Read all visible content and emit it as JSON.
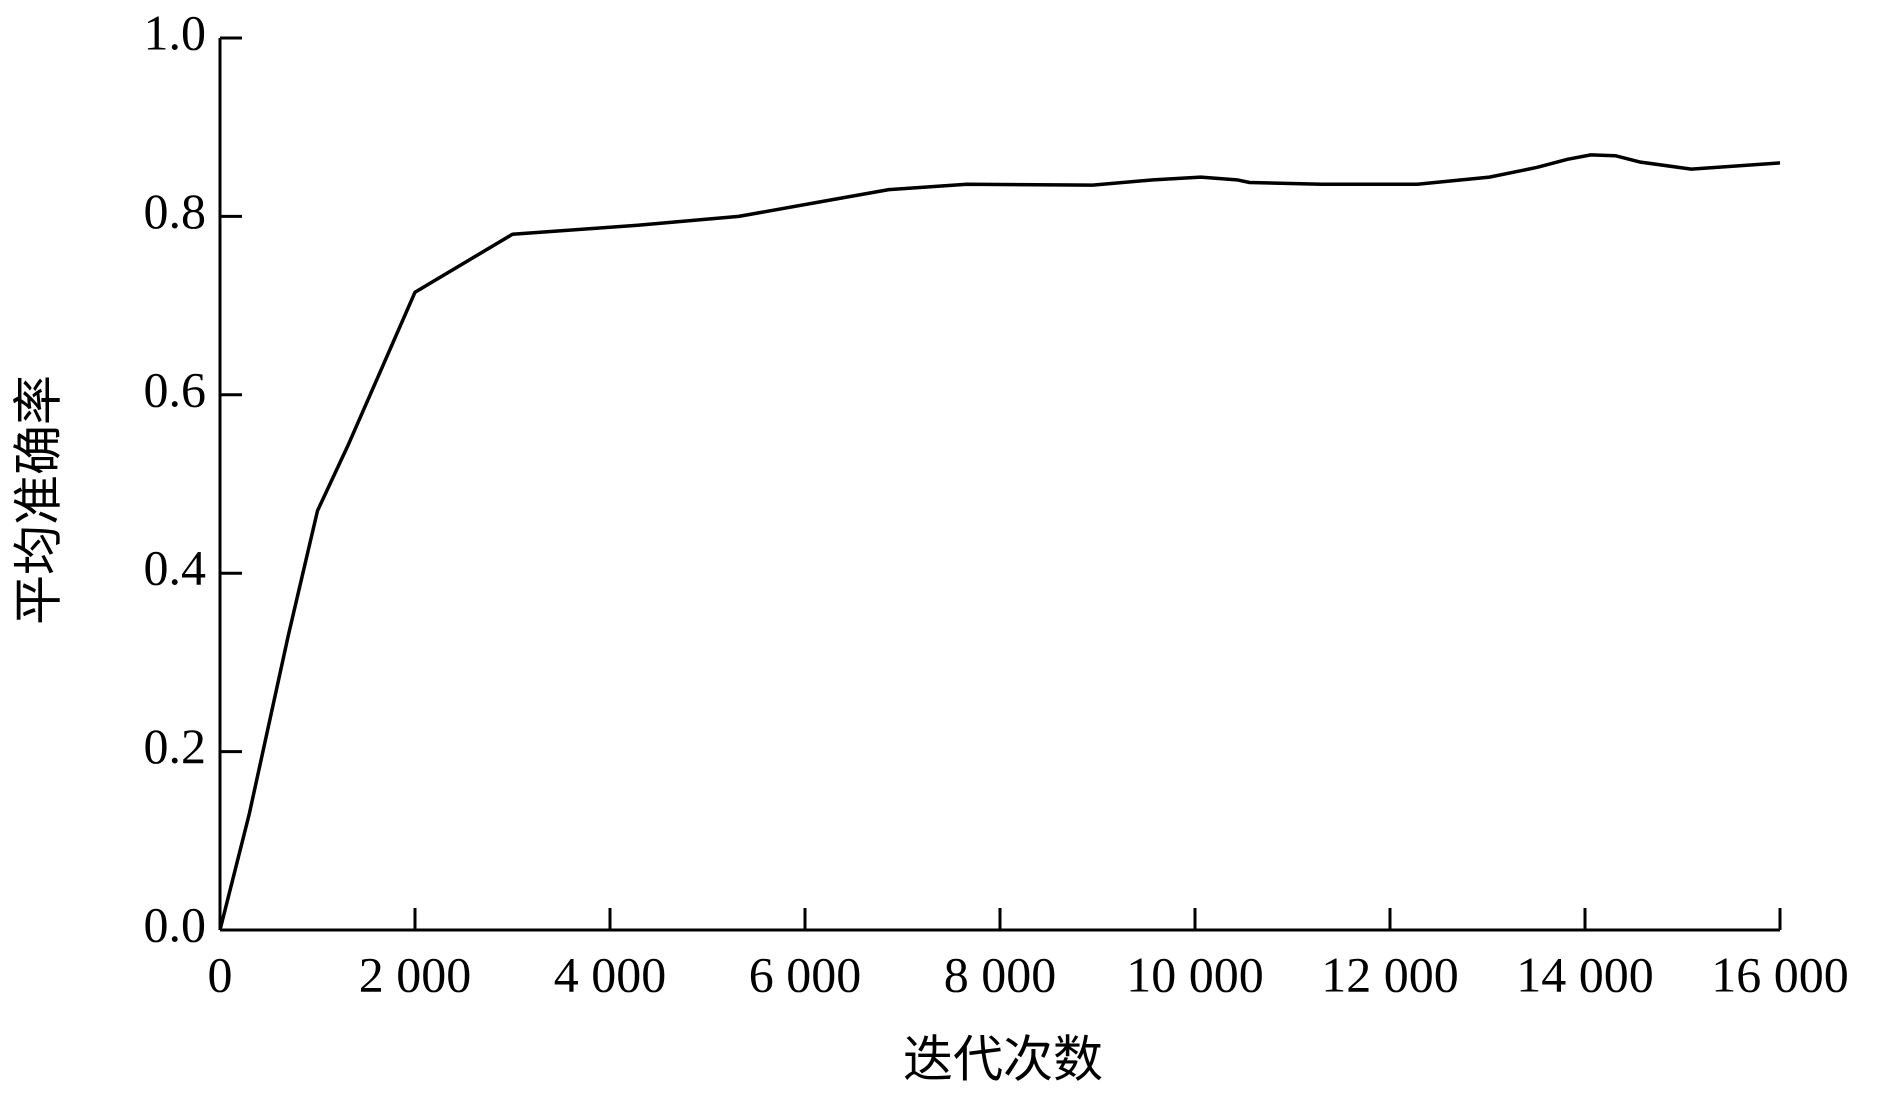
{
  "chart_data": {
    "type": "line",
    "x_label": "迭代次数",
    "y_label": "平均准确率",
    "xlim": [
      0,
      16000
    ],
    "ylim": [
      0,
      1.0
    ],
    "xticks": [
      0,
      {
        "value": 2000,
        "label": "2 000"
      },
      {
        "value": 4000,
        "label": "4 000"
      },
      {
        "value": 6000,
        "label": "6 000"
      },
      {
        "value": 8000,
        "label": "8 000"
      },
      {
        "value": 10000,
        "label": "10 000"
      },
      {
        "value": 12000,
        "label": "12 000"
      },
      {
        "value": 14000,
        "label": "14 000"
      },
      {
        "value": 16000,
        "label": "16 000"
      }
    ],
    "yticks": [
      {
        "value": 0,
        "label": "0.0"
      },
      0.2,
      0.4,
      0.6,
      0.8,
      {
        "value": 1,
        "label": "1.0"
      }
    ],
    "color": "#000000",
    "x": [
      0,
      300,
      700,
      1000,
      1320,
      2000,
      3000,
      4270,
      5320,
      6240,
      6860,
      7660,
      8950,
      9570,
      10060,
      10430,
      10560,
      11300,
      12280,
      13020,
      13510,
      13820,
      14060,
      14310,
      14560,
      15090,
      16000
    ],
    "values": [
      0,
      0.13,
      0.33,
      0.47,
      0.545,
      0.715,
      0.78,
      0.79,
      0.8,
      0.818,
      0.83,
      0.836,
      0.835,
      0.841,
      0.844,
      0.841,
      0.838,
      0.836,
      0.836,
      0.844,
      0.855,
      0.864,
      0.869,
      0.868,
      0.861,
      0.853,
      0.86
    ]
  }
}
